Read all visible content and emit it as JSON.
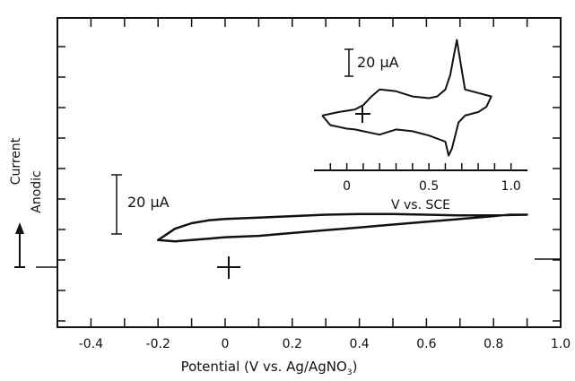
{
  "chart_data": [
    {
      "type": "line",
      "panel": "main",
      "xlabel_main": "Potential (V vs. Ag/AgNO",
      "xlabel_sub": "3",
      "xlabel_close": ")",
      "ylabel_top": "Current",
      "ylabel_bottom": "Anodic",
      "xlim": [
        -0.5,
        1.0
      ],
      "xticks": [
        -0.4,
        -0.2,
        0,
        0.2,
        0.4,
        0.6,
        0.8,
        1.0
      ],
      "xtick_labels": [
        "-0.4",
        "-0.2",
        "0",
        "0.2",
        "0.4",
        "0.6",
        "0.8",
        "1.0"
      ],
      "ylim": [
        -70,
        150
      ],
      "scale_bar": {
        "label": "20 μA",
        "value_uA": 20
      },
      "grid": false,
      "series": [
        {
          "x": [
            -0.2,
            -0.15,
            -0.1,
            -0.05,
            0,
            0.1,
            0.2,
            0.3,
            0.4,
            0.5,
            0.6,
            0.7,
            0.8,
            0.9,
            0.85,
            0.8,
            0.7,
            0.6,
            0.5,
            0.4,
            0.3,
            0.2,
            0.1,
            0,
            -0.05,
            -0.1,
            -0.15,
            -0.2
          ],
          "y": [
            -8,
            0,
            4,
            6,
            7,
            8,
            9,
            10,
            10.5,
            10.5,
            10,
            9.5,
            9.5,
            10,
            10,
            9,
            7,
            5,
            3,
            1,
            -1,
            -3,
            -5,
            -6,
            -7,
            -8,
            -9,
            -8
          ]
        }
      ]
    },
    {
      "type": "line",
      "panel": "inset",
      "xlabel": "V vs. SCE",
      "xlim": [
        -0.2,
        1.1
      ],
      "xticks": [
        0,
        0.5,
        1.0
      ],
      "xtick_labels": [
        "0",
        "0.5",
        "1.0"
      ],
      "ylim": [
        -55,
        110
      ],
      "scale_bar": {
        "label": "20 μA",
        "value_uA": 20
      },
      "grid": false,
      "series": [
        {
          "x": [
            -0.15,
            -0.05,
            0.05,
            0.1,
            0.15,
            0.2,
            0.3,
            0.4,
            0.5,
            0.55,
            0.6,
            0.63,
            0.65,
            0.67,
            0.7,
            0.72,
            0.8,
            0.88,
            0.85,
            0.8,
            0.72,
            0.68,
            0.64,
            0.62,
            0.6,
            0.5,
            0.4,
            0.3,
            0.2,
            0.15,
            0.1,
            0.05,
            0,
            -0.1,
            -0.15
          ],
          "y": [
            8,
            12,
            15,
            20,
            30,
            38,
            36,
            30,
            28,
            30,
            38,
            55,
            75,
            95,
            60,
            38,
            34,
            30,
            18,
            12,
            8,
            0,
            -30,
            -38,
            -22,
            -15,
            -10,
            -8,
            -14,
            -12,
            -10,
            -8,
            -7,
            -3,
            8
          ]
        }
      ]
    }
  ]
}
